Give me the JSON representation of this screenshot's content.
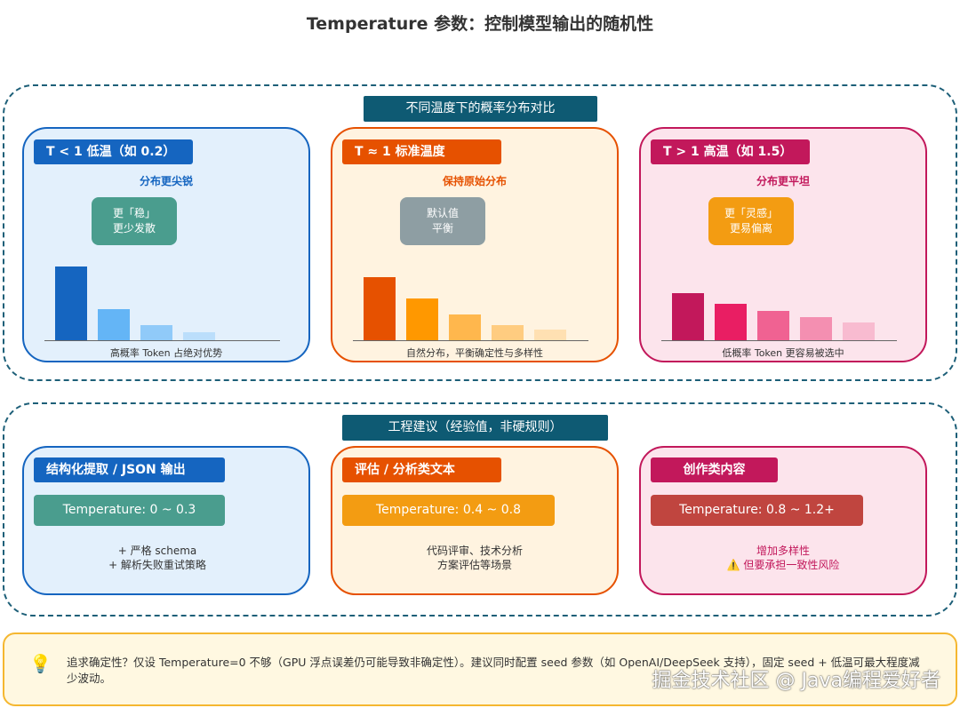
{
  "title": "Temperature 参数：控制模型输出的随机性",
  "section1": {
    "label": "不同温度下的概率分布对比",
    "cards": [
      {
        "tag": "T < 1 低温（如 0.2）",
        "subtitle": "分布更尖锐",
        "note": [
          "更「稳」",
          "更少发散"
        ],
        "caption": "高概率 Token 占绝对优势",
        "color": "#1565c0",
        "bg": "#e3f0fc",
        "note_color": "#4a9d8e",
        "bars": [
          83,
          35,
          17,
          9
        ],
        "bar_colors": [
          "#1565c0",
          "#64b5f6",
          "#90caf9",
          "#bbdefb"
        ]
      },
      {
        "tag": "T ≈ 1 标准温度",
        "subtitle": "保持原始分布",
        "note": [
          "默认值",
          "平衡"
        ],
        "caption": "自然分布，平衡确定性与多样性",
        "color": "#e65100",
        "bg": "#fff3e0",
        "note_color": "#8e9ea3",
        "bars": [
          71,
          47,
          29,
          17,
          12
        ],
        "bar_colors": [
          "#e65100",
          "#ff9800",
          "#ffb74d",
          "#ffcc80",
          "#ffe0b2"
        ]
      },
      {
        "tag": "T > 1 高温（如 1.5）",
        "subtitle": "分布更平坦",
        "note": [
          "更「灵感」",
          "更易偏离"
        ],
        "caption": "低概率 Token 更容易被选中",
        "color": "#c2185b",
        "bg": "#fce4ec",
        "note_color": "#f39c12",
        "bars": [
          53,
          41,
          33,
          26,
          20
        ],
        "bar_colors": [
          "#c2185b",
          "#e91e63",
          "#f06292",
          "#f48fb1",
          "#f8bbd0"
        ]
      }
    ]
  },
  "section2": {
    "label": "工程建议（经验值，非硬规则）",
    "cards": [
      {
        "tag": "结构化提取 / JSON 输出",
        "temp": "Temperature: 0 ~ 0.3",
        "desc": [
          "+ 严格 schema",
          "+ 解析失败重试策略"
        ],
        "color": "#1565c0",
        "bg": "#e3f0fc",
        "temp_color": "#4a9d8e",
        "desc_color": "#333333"
      },
      {
        "tag": "评估 / 分析类文本",
        "temp": "Temperature: 0.4 ~ 0.8",
        "desc": [
          "代码评审、技术分析",
          "方案评估等场景"
        ],
        "color": "#e65100",
        "bg": "#fff3e0",
        "temp_color": "#f39c12",
        "desc_color": "#333333"
      },
      {
        "tag": "创作类内容",
        "temp": "Temperature: 0.8 ~ 1.2+",
        "desc": [
          "增加多样性",
          "⚠️ 但要承担一致性风险"
        ],
        "color": "#c2185b",
        "bg": "#fce4ec",
        "temp_color": "#c0453f",
        "desc_color": "#c2185b"
      }
    ]
  },
  "tip": {
    "icon": "lightbulb-icon",
    "text": "追求确定性？仅设 Temperature=0 不够（GPU 浮点误差仍可能导致非确定性）。建议同时配置 seed 参数（如 OpenAI/DeepSeek 支持），固定 seed + 低温可最大程度减少波动。"
  },
  "watermark": "掘金技术社区 @ Java编程爱好者"
}
